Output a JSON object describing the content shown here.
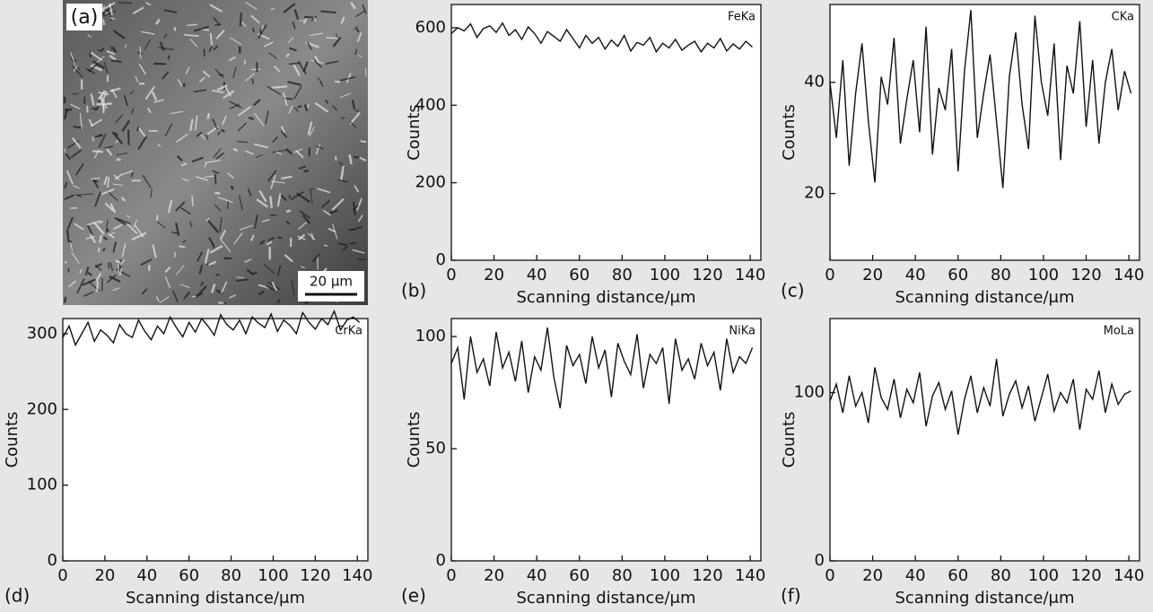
{
  "figure": {
    "image_label": "(a)",
    "scale_bar": "20 μm"
  },
  "chart_data": [
    {
      "type": "line",
      "panel": "(b)",
      "x_label": "Scanning distance/μm",
      "y_label": "Counts",
      "xlim": [
        0,
        145
      ],
      "ylim": [
        0,
        660
      ],
      "xticks": [
        0,
        20,
        40,
        60,
        80,
        100,
        120,
        140
      ],
      "yticks": [
        0,
        200,
        400,
        600
      ],
      "x": [
        0,
        3,
        6,
        9,
        12,
        15,
        18,
        21,
        24,
        27,
        30,
        33,
        36,
        39,
        42,
        45,
        48,
        51,
        54,
        57,
        60,
        63,
        66,
        69,
        72,
        75,
        78,
        81,
        84,
        87,
        90,
        93,
        96,
        99,
        102,
        105,
        108,
        111,
        114,
        117,
        120,
        123,
        126,
        129,
        132,
        135,
        138,
        141
      ],
      "series": [
        {
          "name": "FeKa",
          "color": "#111111",
          "values": [
            585,
            600,
            592,
            610,
            575,
            598,
            605,
            588,
            612,
            580,
            595,
            570,
            602,
            585,
            560,
            590,
            578,
            565,
            595,
            572,
            548,
            580,
            560,
            575,
            545,
            568,
            552,
            580,
            540,
            562,
            555,
            575,
            538,
            560,
            548,
            570,
            542,
            555,
            565,
            538,
            560,
            548,
            572,
            540,
            558,
            545,
            565,
            550
          ]
        }
      ]
    },
    {
      "type": "line",
      "panel": "(c)",
      "x_label": "Scanning distance/μm",
      "y_label": "Counts",
      "xlim": [
        0,
        145
      ],
      "ylim": [
        8,
        54
      ],
      "xticks": [
        0,
        20,
        40,
        60,
        80,
        100,
        120,
        140
      ],
      "yticks": [
        20,
        40
      ],
      "x": [
        0,
        3,
        6,
        9,
        12,
        15,
        18,
        21,
        24,
        27,
        30,
        33,
        36,
        39,
        42,
        45,
        48,
        51,
        54,
        57,
        60,
        63,
        66,
        69,
        72,
        75,
        78,
        81,
        84,
        87,
        90,
        93,
        96,
        99,
        102,
        105,
        108,
        111,
        114,
        117,
        120,
        123,
        126,
        129,
        132,
        135,
        138,
        141
      ],
      "series": [
        {
          "name": "CKa",
          "color": "#111111",
          "values": [
            40,
            30,
            44,
            25,
            38,
            47,
            33,
            22,
            41,
            36,
            48,
            29,
            37,
            44,
            31,
            50,
            27,
            39,
            35,
            46,
            24,
            42,
            53,
            30,
            38,
            45,
            33,
            21,
            41,
            49,
            36,
            28,
            52,
            40,
            34,
            47,
            26,
            43,
            38,
            51,
            32,
            44,
            29,
            40,
            46,
            35,
            42,
            38
          ]
        }
      ]
    },
    {
      "type": "line",
      "panel": "(d)",
      "x_label": "Scanning distance/μm",
      "y_label": "Counts",
      "xlim": [
        0,
        145
      ],
      "ylim": [
        0,
        320
      ],
      "xticks": [
        0,
        20,
        40,
        60,
        80,
        100,
        120,
        140
      ],
      "yticks": [
        0,
        100,
        200,
        300
      ],
      "x": [
        0,
        3,
        6,
        9,
        12,
        15,
        18,
        21,
        24,
        27,
        30,
        33,
        36,
        39,
        42,
        45,
        48,
        51,
        54,
        57,
        60,
        63,
        66,
        69,
        72,
        75,
        78,
        81,
        84,
        87,
        90,
        93,
        96,
        99,
        102,
        105,
        108,
        111,
        114,
        117,
        120,
        123,
        126,
        129,
        132,
        135,
        138,
        141
      ],
      "series": [
        {
          "name": "CrKa",
          "color": "#111111",
          "values": [
            295,
            310,
            285,
            300,
            315,
            290,
            305,
            298,
            288,
            312,
            300,
            295,
            318,
            303,
            292,
            310,
            300,
            322,
            308,
            296,
            315,
            302,
            320,
            310,
            298,
            325,
            312,
            305,
            318,
            300,
            322,
            314,
            308,
            326,
            303,
            318,
            311,
            300,
            328,
            315,
            306,
            320,
            312,
            330,
            305,
            318,
            322,
            315
          ]
        }
      ]
    },
    {
      "type": "line",
      "panel": "(e)",
      "x_label": "Scanning distance/μm",
      "y_label": "Counts",
      "xlim": [
        0,
        145
      ],
      "ylim": [
        0,
        108
      ],
      "xticks": [
        0,
        20,
        40,
        60,
        80,
        100,
        120,
        140
      ],
      "yticks": [
        0,
        50,
        100
      ],
      "x": [
        0,
        3,
        6,
        9,
        12,
        15,
        18,
        21,
        24,
        27,
        30,
        33,
        36,
        39,
        42,
        45,
        48,
        51,
        54,
        57,
        60,
        63,
        66,
        69,
        72,
        75,
        78,
        81,
        84,
        87,
        90,
        93,
        96,
        99,
        102,
        105,
        108,
        111,
        114,
        117,
        120,
        123,
        126,
        129,
        132,
        135,
        138,
        141
      ],
      "series": [
        {
          "name": "NiKa",
          "color": "#111111",
          "values": [
            88,
            95,
            72,
            100,
            84,
            90,
            78,
            102,
            86,
            93,
            80,
            98,
            75,
            91,
            85,
            104,
            82,
            68,
            96,
            87,
            92,
            79,
            100,
            86,
            94,
            73,
            97,
            89,
            83,
            101,
            77,
            92,
            88,
            95,
            70,
            99,
            85,
            90,
            81,
            97,
            87,
            93,
            76,
            99,
            84,
            91,
            88,
            95
          ]
        }
      ]
    },
    {
      "type": "line",
      "panel": "(f)",
      "x_label": "Scanning distance/μm",
      "y_label": "Counts",
      "xlim": [
        0,
        145
      ],
      "ylim": [
        0,
        144
      ],
      "xticks": [
        0,
        20,
        40,
        60,
        80,
        100,
        120,
        140
      ],
      "yticks": [
        0,
        100
      ],
      "x": [
        0,
        3,
        6,
        9,
        12,
        15,
        18,
        21,
        24,
        27,
        30,
        33,
        36,
        39,
        42,
        45,
        48,
        51,
        54,
        57,
        60,
        63,
        66,
        69,
        72,
        75,
        78,
        81,
        84,
        87,
        90,
        93,
        96,
        99,
        102,
        105,
        108,
        111,
        114,
        117,
        120,
        123,
        126,
        129,
        132,
        135,
        138,
        141
      ],
      "series": [
        {
          "name": "MoLa",
          "color": "#111111",
          "values": [
            95,
            105,
            88,
            110,
            92,
            100,
            82,
            115,
            97,
            90,
            108,
            85,
            102,
            94,
            112,
            80,
            98,
            106,
            90,
            101,
            75,
            96,
            110,
            88,
            103,
            92,
            120,
            86,
            99,
            107,
            91,
            104,
            83,
            97,
            111,
            89,
            100,
            94,
            108,
            78,
            102,
            96,
            113,
            88,
            105,
            93,
            99,
            101
          ]
        }
      ]
    }
  ]
}
